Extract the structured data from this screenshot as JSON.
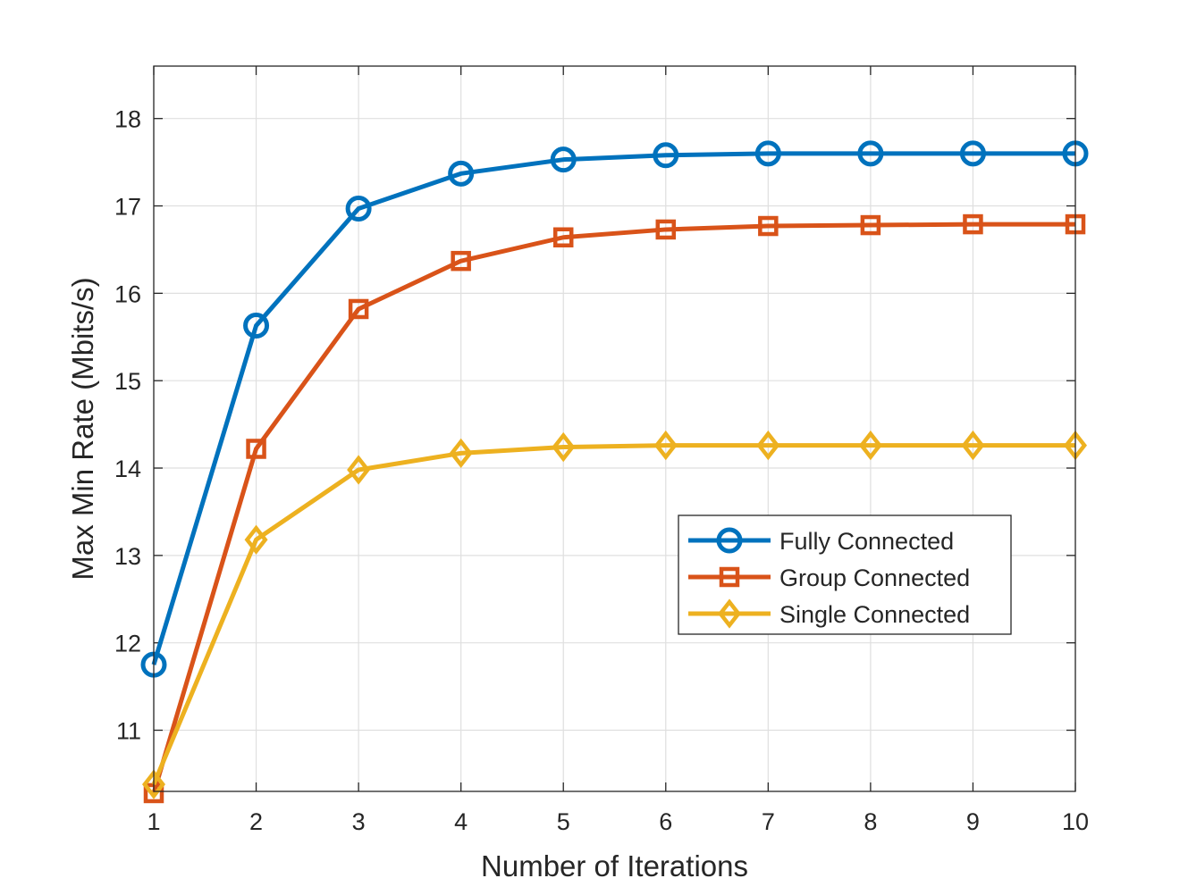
{
  "chart_data": {
    "type": "line",
    "title": "",
    "xlabel": "Number of Iterations",
    "ylabel": "Max Min Rate (Mbits/s)",
    "x": [
      1,
      2,
      3,
      4,
      5,
      6,
      7,
      8,
      9,
      10
    ],
    "xlim": [
      1,
      10
    ],
    "ylim": [
      10.3,
      18.6
    ],
    "xticks": [
      "1",
      "2",
      "3",
      "4",
      "5",
      "6",
      "7",
      "8",
      "9",
      "10"
    ],
    "yticks": [
      "11",
      "12",
      "13",
      "14",
      "15",
      "16",
      "17",
      "18"
    ],
    "grid": true,
    "legend_position": "middle-right",
    "series": [
      {
        "name": "Fully Connected",
        "color": "#0072BD",
        "marker": "circle",
        "values": [
          11.75,
          15.63,
          16.97,
          17.37,
          17.53,
          17.58,
          17.6,
          17.6,
          17.6,
          17.6
        ]
      },
      {
        "name": "Group Connected",
        "color": "#D95319",
        "marker": "square",
        "values": [
          10.28,
          14.22,
          15.82,
          16.37,
          16.64,
          16.73,
          16.77,
          16.78,
          16.79,
          16.79
        ]
      },
      {
        "name": "Single Connected",
        "color": "#EDB120",
        "marker": "diamond",
        "values": [
          10.38,
          13.18,
          13.98,
          14.17,
          14.24,
          14.26,
          14.26,
          14.26,
          14.26,
          14.26
        ]
      }
    ]
  }
}
